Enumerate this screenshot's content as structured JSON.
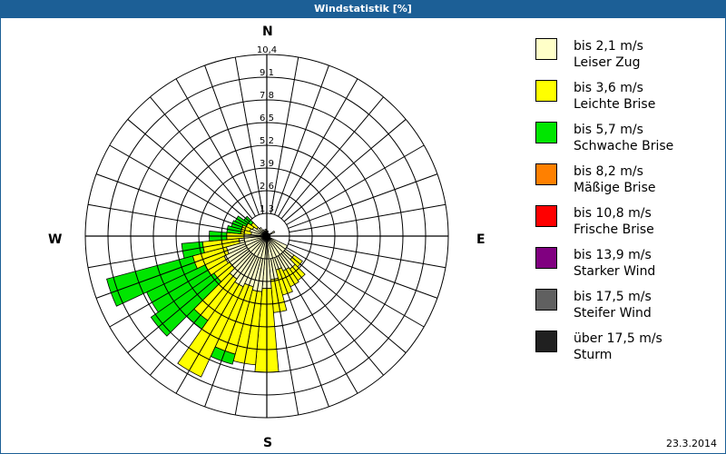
{
  "window": {
    "title": "Windstatistik [%]"
  },
  "compass": {
    "n": "N",
    "e": "E",
    "s": "S",
    "w": "W"
  },
  "date": "23.3.2014",
  "legend": [
    {
      "range": "bis 2,1 m/s",
      "name": "Leiser Zug",
      "color": "#ffffc8"
    },
    {
      "range": "bis 3,6 m/s",
      "name": "Leichte Brise",
      "color": "#ffff00"
    },
    {
      "range": "bis 5,7 m/s",
      "name": "Schwache Brise",
      "color": "#00e600"
    },
    {
      "range": "bis 8,2 m/s",
      "name": "Mäßige Brise",
      "color": "#ff8000"
    },
    {
      "range": "bis 10,8 m/s",
      "name": "Frische Brise",
      "color": "#ff0000"
    },
    {
      "range": "bis 13,9 m/s",
      "name": "Starker Wind",
      "color": "#800080"
    },
    {
      "range": "bis 17,5 m/s",
      "name": "Steifer Wind",
      "color": "#606060"
    },
    {
      "range": "über 17,5 m/s",
      "name": "Sturm",
      "color": "#202020"
    }
  ],
  "chart_data": {
    "type": "polar-bar",
    "title": "Windstatistik [%]",
    "radial_ticks": [
      "1,3",
      "2,6",
      "3,9",
      "5,2",
      "6,5",
      "7,8",
      "9,1",
      "10,4"
    ],
    "rmax": 10.4,
    "sector_width_deg": 10,
    "series_names": [
      "bis 2,1 m/s",
      "bis 3,6 m/s",
      "bis 5,7 m/s"
    ],
    "sectors": [
      {
        "dir": 0,
        "values": [
          0.3,
          0,
          0
        ]
      },
      {
        "dir": 10,
        "values": [
          0.3,
          0,
          0
        ]
      },
      {
        "dir": 60,
        "values": [
          0.5,
          0,
          0
        ]
      },
      {
        "dir": 90,
        "values": [
          0.2,
          0,
          0
        ]
      },
      {
        "dir": 120,
        "values": [
          1.3,
          0,
          0
        ]
      },
      {
        "dir": 130,
        "values": [
          1.9,
          0.6,
          0
        ]
      },
      {
        "dir": 140,
        "values": [
          2.3,
          0.8,
          0
        ]
      },
      {
        "dir": 150,
        "values": [
          2.2,
          1.0,
          0
        ]
      },
      {
        "dir": 160,
        "values": [
          2.0,
          1.5,
          0
        ]
      },
      {
        "dir": 170,
        "values": [
          2.5,
          1.9,
          0
        ]
      },
      {
        "dir": 180,
        "values": [
          3.0,
          4.8,
          0
        ]
      },
      {
        "dir": 190,
        "values": [
          3.2,
          4.2,
          0
        ]
      },
      {
        "dir": 200,
        "values": [
          3.0,
          4.0,
          0.6
        ]
      },
      {
        "dir": 210,
        "values": [
          3.2,
          5.7,
          0
        ]
      },
      {
        "dir": 220,
        "values": [
          3.0,
          2.9,
          0.6
        ]
      },
      {
        "dir": 230,
        "values": [
          2.6,
          1.1,
          4.4
        ]
      },
      {
        "dir": 240,
        "values": [
          2.7,
          1.2,
          3.7
        ]
      },
      {
        "dir": 250,
        "values": [
          2.4,
          2.0,
          5.1
        ]
      },
      {
        "dir": 260,
        "values": [
          1.6,
          2.1,
          1.2
        ]
      },
      {
        "dir": 270,
        "values": [
          1.3,
          1.0,
          1.0
        ]
      },
      {
        "dir": 280,
        "values": [
          0.9,
          0.6,
          0.8
        ]
      },
      {
        "dir": 290,
        "values": [
          1.0,
          0.5,
          0.6
        ]
      },
      {
        "dir": 300,
        "values": [
          0.9,
          0.4,
          0.7
        ]
      },
      {
        "dir": 310,
        "values": [
          0.7,
          0.4,
          0.5
        ]
      },
      {
        "dir": 320,
        "values": [
          0.6,
          0,
          0
        ]
      },
      {
        "dir": 330,
        "values": [
          0.4,
          0,
          0
        ]
      },
      {
        "dir": 340,
        "values": [
          0.3,
          0,
          0
        ]
      },
      {
        "dir": 350,
        "values": [
          0.4,
          0,
          0
        ]
      }
    ],
    "legend_position": "right",
    "grid": true
  }
}
